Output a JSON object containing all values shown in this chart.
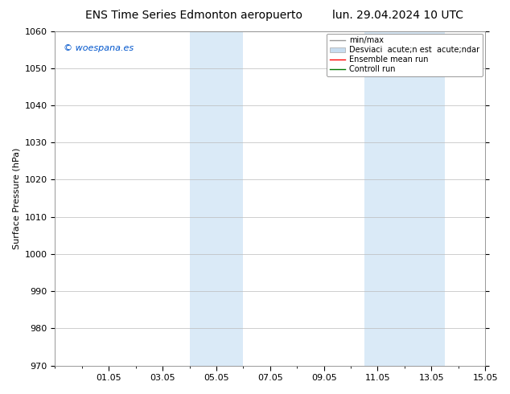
{
  "title_left": "ENS Time Series Edmonton aeropuerto",
  "title_right": "lun. 29.04.2024 10 UTC",
  "ylabel": "Surface Pressure (hPa)",
  "ylim": [
    970,
    1060
  ],
  "yticks": [
    970,
    980,
    990,
    1000,
    1010,
    1020,
    1030,
    1040,
    1050,
    1060
  ],
  "xtick_labels": [
    "01.05",
    "03.05",
    "05.05",
    "07.05",
    "09.05",
    "11.05",
    "13.05",
    "15.05"
  ],
  "xtick_positions": [
    2,
    4,
    6,
    8,
    10,
    12,
    14,
    16
  ],
  "xlim": [
    0,
    16
  ],
  "watermark": "© woespana.es",
  "watermark_color": "#0055cc",
  "bg_color": "#ffffff",
  "shaded_bands": [
    {
      "x_start": 5.0,
      "x_end": 7.0,
      "color": "#daeaf7"
    },
    {
      "x_start": 11.5,
      "x_end": 13.0,
      "color": "#daeaf7"
    },
    {
      "x_start": 13.0,
      "x_end": 14.5,
      "color": "#daeaf7"
    }
  ],
  "grid_color": "#bbbbbb",
  "title_fontsize": 10,
  "tick_fontsize": 8,
  "ylabel_fontsize": 8,
  "legend_fontsize": 7,
  "legend_labels": [
    "min/max",
    "Desviaci  acute;n est  acute;ndar",
    "Ensemble mean run",
    "Controll run"
  ],
  "legend_line_colors": [
    "#999999",
    "#c8ddf0",
    "#ff0000",
    "#007700"
  ],
  "watermark_fontsize": 8
}
